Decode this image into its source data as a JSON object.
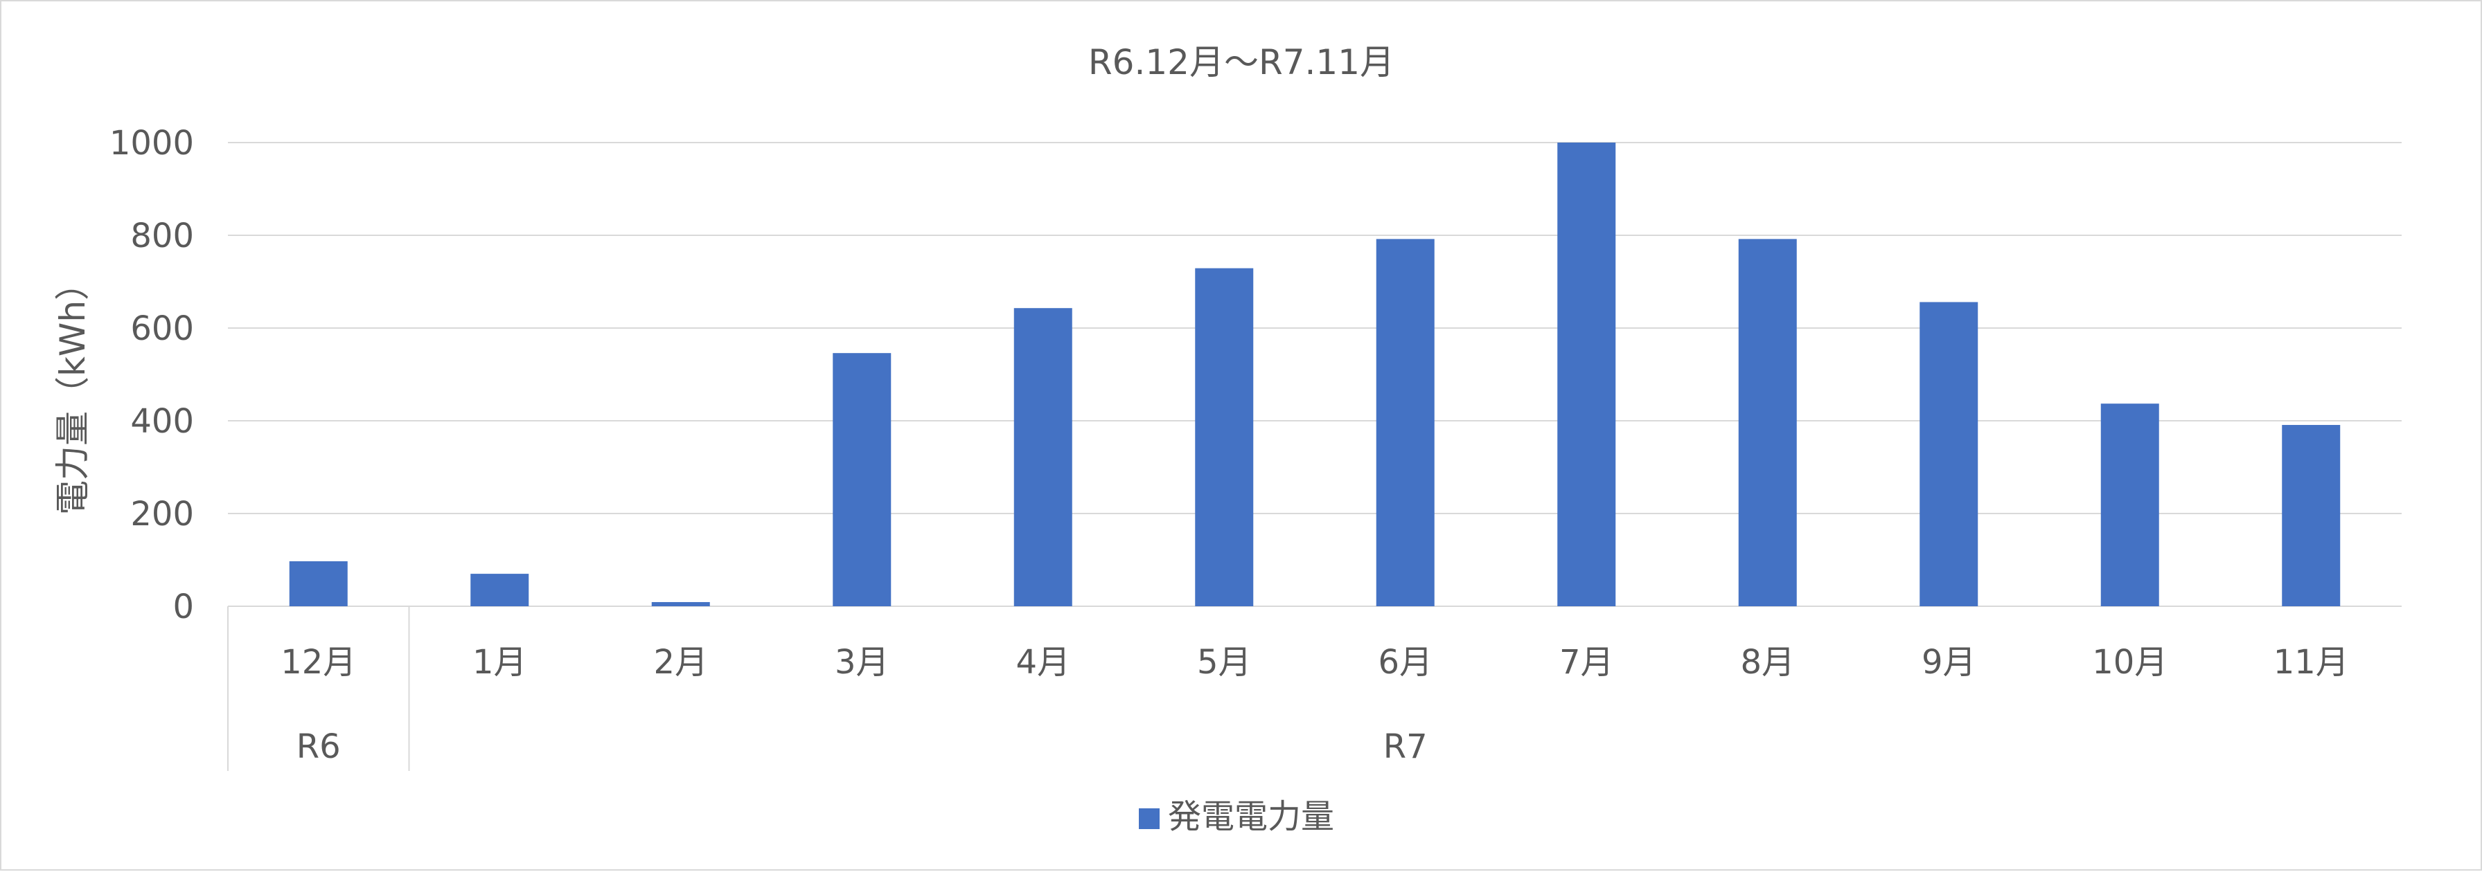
{
  "chart_data": {
    "type": "bar",
    "title": "R6.12月～R7.11月",
    "ylabel": "電力量（kWh）",
    "xlabel": "",
    "ylim": [
      0,
      1000
    ],
    "yticks": [
      0,
      200,
      400,
      600,
      800,
      1000
    ],
    "grid": true,
    "legend_position": "bottom",
    "categories": [
      "12月",
      "1月",
      "2月",
      "3月",
      "4月",
      "5月",
      "6月",
      "7月",
      "8月",
      "9月",
      "10月",
      "11月"
    ],
    "category_groups": [
      {
        "label": "R6",
        "span": 1
      },
      {
        "label": "R7",
        "span": 11
      }
    ],
    "series": [
      {
        "name": "発電電力量",
        "values": [
          97,
          70,
          9,
          546,
          643,
          729,
          792,
          1002,
          792,
          656,
          437,
          391
        ]
      }
    ],
    "colors": {
      "bar": "#4472C4",
      "grid": "#d9d9d9",
      "axis_text": "#595959"
    }
  }
}
